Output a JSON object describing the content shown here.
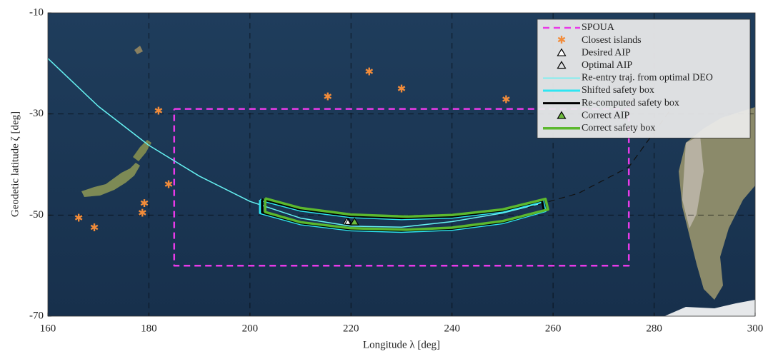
{
  "chart_data": {
    "type": "map",
    "xlabel": "Longitude λ [deg]",
    "ylabel": "Geodetic latitude ζ [deg]",
    "xlim": [
      160,
      300
    ],
    "ylim": [
      -70,
      -10
    ],
    "xticks": [
      160,
      180,
      200,
      220,
      240,
      260,
      280,
      300
    ],
    "yticks": [
      -70,
      -50,
      -30,
      -10
    ],
    "grid": true,
    "legend": "upper right",
    "series": [
      {
        "name": "SPOUA",
        "color": "#e83ae8",
        "style": "dashed",
        "width": 2.5,
        "x": [
          185,
          275,
          275,
          185,
          185
        ],
        "y": [
          -29,
          -29,
          -60,
          -60,
          -29
        ]
      },
      {
        "name": "Closest islands",
        "color": "#f28c3a",
        "marker": "star",
        "x": [
          166.1,
          169.2,
          179.1,
          178.7,
          181.9,
          183.9,
          215.4,
          223.6,
          230,
          250.7
        ],
        "y": [
          -50.7,
          -52.6,
          -47.8,
          -49.7,
          -29.5,
          -44,
          -26.7,
          -21.7,
          -25.1,
          -27.2
        ]
      },
      {
        "name": "Desired AIP",
        "color": "#000000",
        "facecolor": "#ffffff",
        "marker": "triangle",
        "x": [
          219.2
        ],
        "y": [
          -51.3
        ]
      },
      {
        "name": "Optimal AIP",
        "color": "#000000",
        "facecolor": "none",
        "marker": "triangle",
        "x": [
          219.5
        ],
        "y": [
          -51.4
        ]
      },
      {
        "name": "Re-entry traj. from optimal DEO",
        "color": "#66f2f2",
        "style": "solid",
        "width": 1.5,
        "x": [
          160,
          170,
          180,
          190,
          200,
          210,
          220,
          230,
          240,
          250,
          258
        ],
        "y": [
          -19,
          -28.5,
          -36.2,
          -42.3,
          -47.3,
          -50.6,
          -52.2,
          -52.4,
          -51.3,
          -49.6,
          -47.6
        ]
      },
      {
        "color": "#111111",
        "style": "dashed",
        "width": 1.2,
        "x": [
          255,
          265,
          275,
          283
        ],
        "y": [
          -48.5,
          -45.7,
          -40.5,
          -29.5
        ]
      },
      {
        "name": "Shifted safety box",
        "color": "#2ee6f2",
        "style": "solid",
        "width": 3,
        "x": [
          202,
          210,
          220,
          230,
          240,
          250,
          258,
          258.5,
          250,
          240,
          230,
          220,
          210,
          202,
          202
        ],
        "y": [
          -47,
          -49.1,
          -50.4,
          -50.8,
          -50.5,
          -49.3,
          -47.3,
          -49.2,
          -51.6,
          -52.9,
          -53.3,
          -53,
          -51.8,
          -49.6,
          -47
        ]
      },
      {
        "name": "Re-computed safety box",
        "color": "#000000",
        "style": "solid",
        "width": 3,
        "x": [
          202.4,
          210,
          220,
          230,
          240,
          250,
          257.8,
          258.2,
          250,
          240,
          230,
          220,
          210,
          202.4,
          202.4
        ],
        "y": [
          -46.9,
          -48.9,
          -50.2,
          -50.6,
          -50.3,
          -49.1,
          -47.1,
          -49.1,
          -51.4,
          -52.7,
          -53.1,
          -52.8,
          -51.6,
          -49.5,
          -46.9
        ]
      },
      {
        "name": "Correct AIP",
        "color": "#000000",
        "facecolor": "#6dbb3c",
        "marker": "triangle",
        "x": [
          220.7
        ],
        "y": [
          -51.4
        ]
      },
      {
        "name": "Correct safety box",
        "color": "#5cb82e",
        "style": "solid",
        "width": 3.5,
        "x": [
          203,
          210,
          220,
          231,
          240,
          250,
          258.5,
          259,
          250,
          240,
          231,
          220,
          210,
          203,
          203
        ],
        "y": [
          -46.7,
          -48.6,
          -49.9,
          -50.3,
          -50,
          -48.9,
          -46.8,
          -48.9,
          -51.2,
          -52.5,
          -52.9,
          -52.6,
          -51.4,
          -49.4,
          -46.7
        ]
      }
    ]
  }
}
